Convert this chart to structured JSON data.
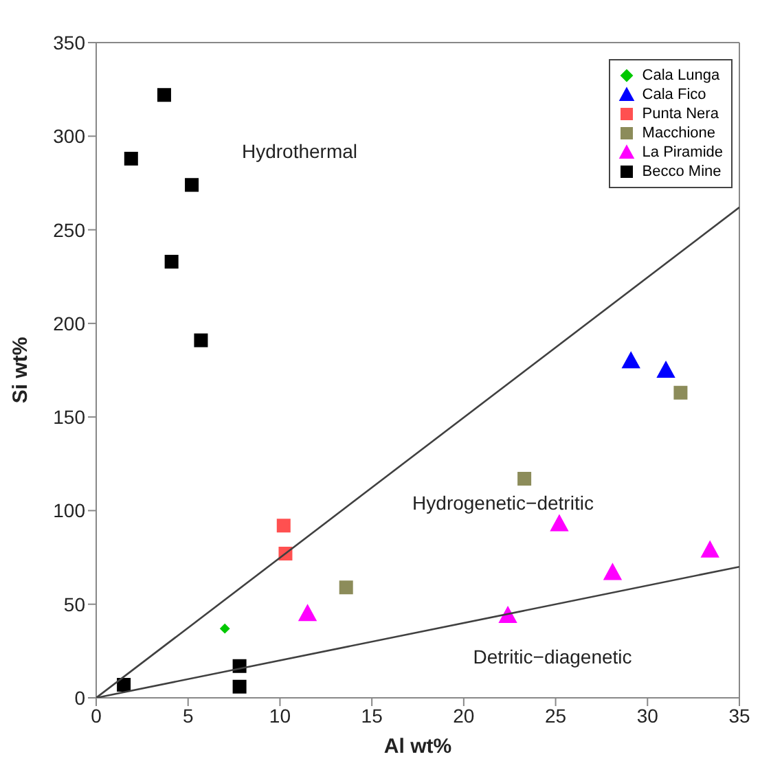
{
  "chart_data": {
    "type": "scatter",
    "xlabel": "Al wt%",
    "ylabel": "Si wt%",
    "xlim": [
      0,
      35
    ],
    "xticks": [
      0,
      5,
      10,
      15,
      20,
      25,
      30,
      35
    ],
    "ylim": [
      0,
      350
    ],
    "yticks": [
      0,
      50,
      100,
      150,
      200,
      250,
      300,
      350
    ],
    "legend": "top right",
    "series": [
      {
        "name": "Cala Lunga",
        "color": "#00c800",
        "marker": "diamond",
        "x": [
          7.0
        ],
        "values": [
          37
        ]
      },
      {
        "name": "Cala Fico",
        "color": "#0000ff",
        "marker": "triangle",
        "x": [
          29.1,
          31.0
        ],
        "values": [
          180,
          175
        ]
      },
      {
        "name": "Punta Nera",
        "color": "#ff5050",
        "marker": "square",
        "x": [
          10.2,
          10.3
        ],
        "values": [
          92,
          77
        ]
      },
      {
        "name": "Macchione",
        "color": "#8c8c5a",
        "marker": "square",
        "x": [
          13.6,
          23.3,
          31.8
        ],
        "values": [
          59,
          117,
          163
        ]
      },
      {
        "name": "La Piramide",
        "color": "#ff00ff",
        "marker": "triangle",
        "x": [
          11.5,
          22.4,
          25.2,
          28.1,
          33.4
        ],
        "values": [
          45,
          44,
          93,
          67,
          79
        ]
      },
      {
        "name": "Becco Mine",
        "color": "#000000",
        "marker": "square",
        "x": [
          3.7,
          1.9,
          5.2,
          4.1,
          5.7,
          1.5,
          7.8,
          7.8
        ],
        "values": [
          322,
          288,
          274,
          233,
          191,
          7,
          17,
          6
        ]
      },
      {
        "type": "line",
        "color": "#404040",
        "marker": "none",
        "x": [
          0,
          35
        ],
        "values": [
          0,
          262
        ]
      },
      {
        "type": "line",
        "color": "#404040",
        "marker": "none",
        "x": [
          0,
          35
        ],
        "values": [
          0,
          70
        ]
      }
    ],
    "annotations": [
      "Hydrothermal",
      "Hydrogenetic−detritic",
      "Detritic−diagenetic"
    ]
  }
}
